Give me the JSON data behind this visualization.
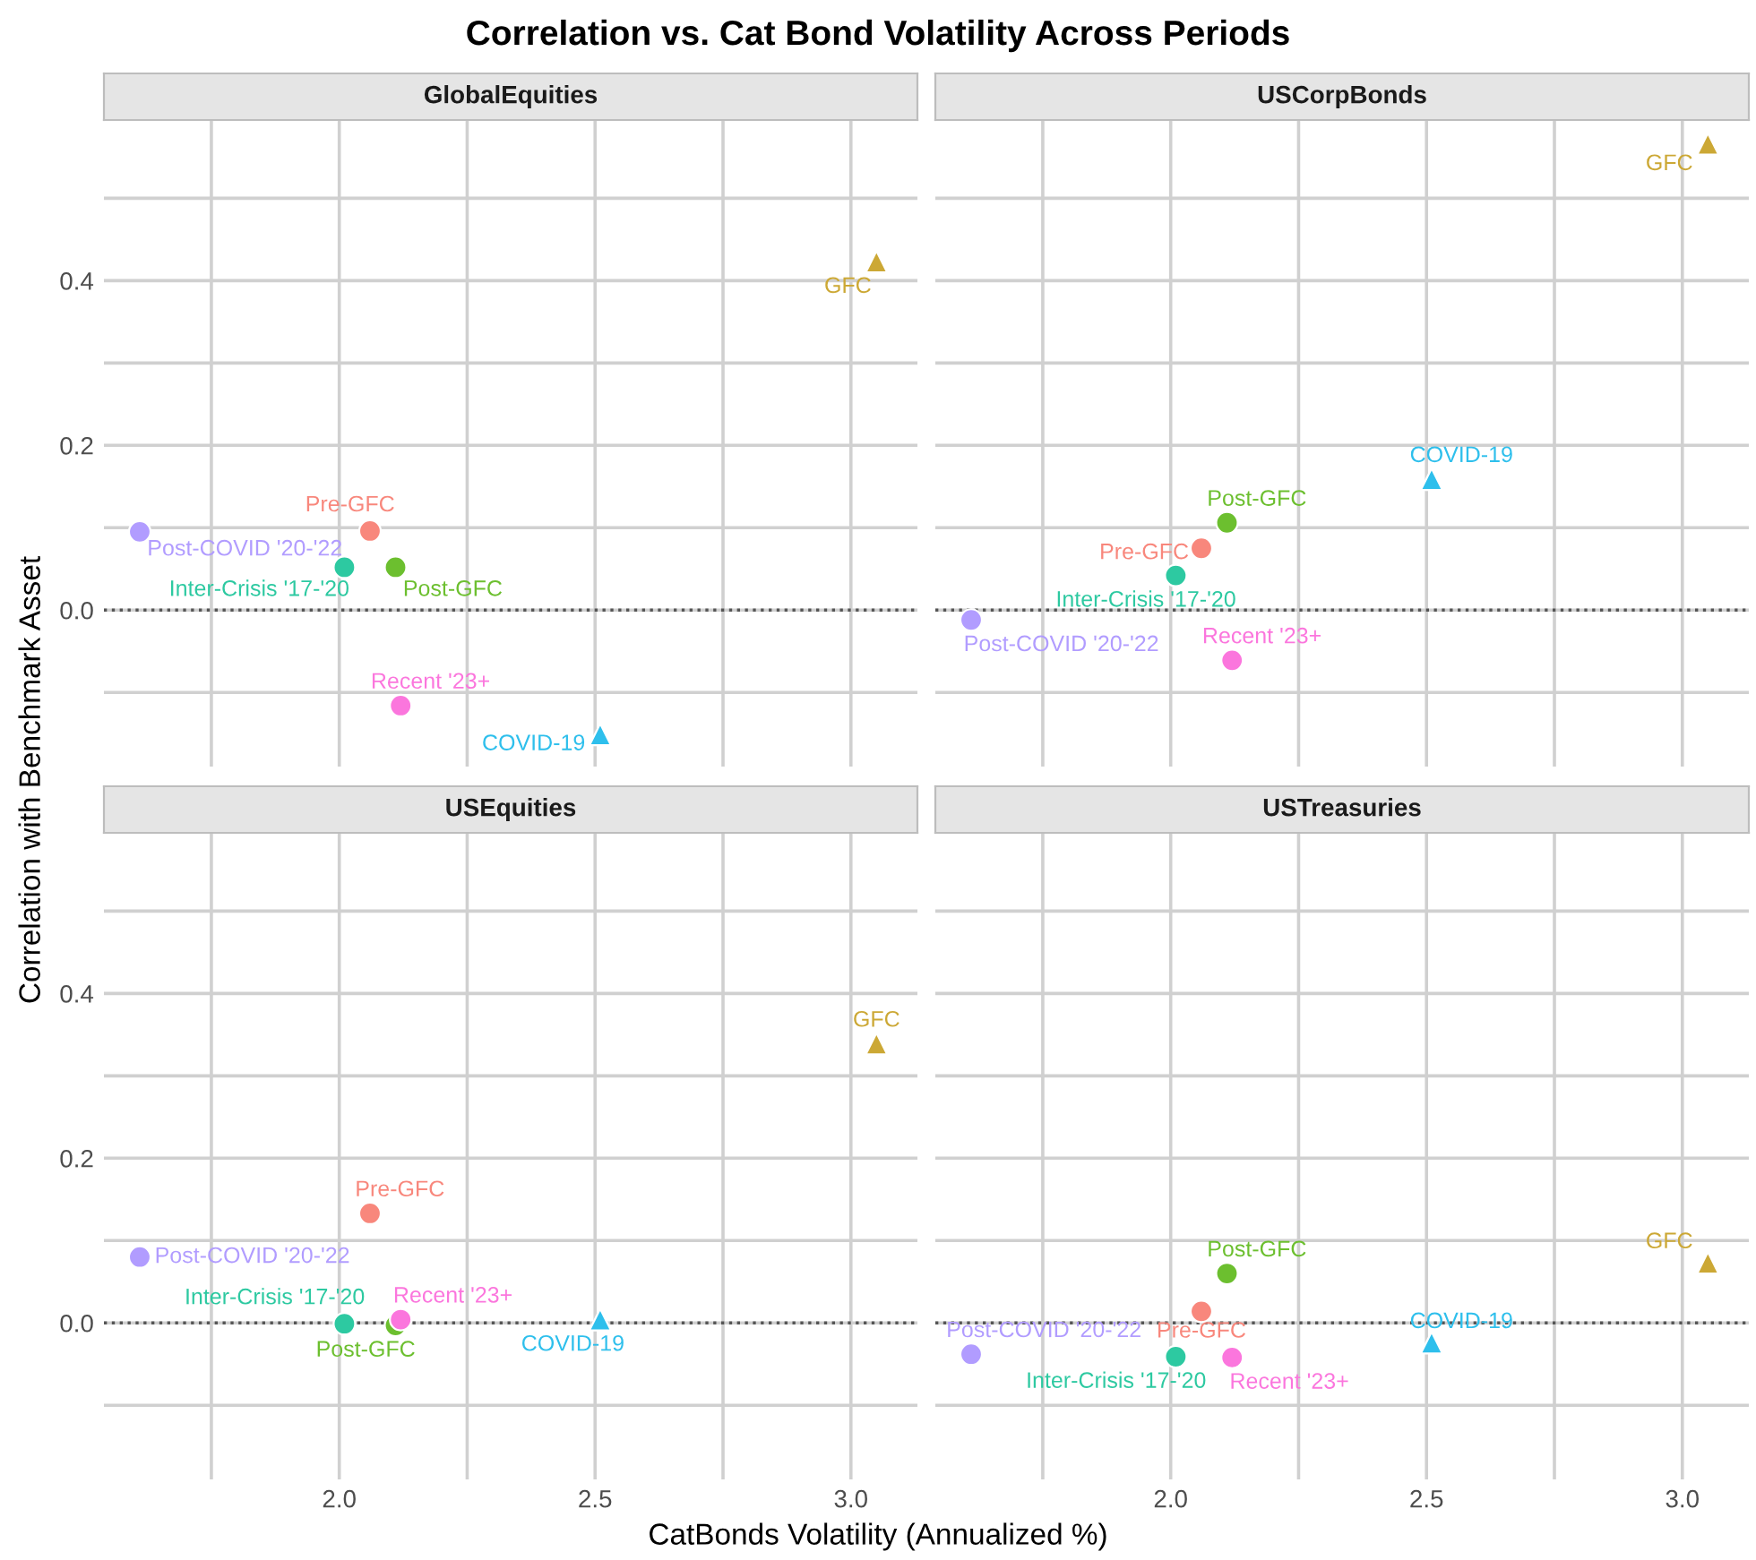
{
  "chart_data": [
    {
      "type": "scatter",
      "title": "Correlation vs. Cat Bond Volatility Across Periods",
      "subtitle": "GlobalEquities",
      "ylabel": "Correlation with Benchmark Asset",
      "xlim": [
        1.54,
        3.13
      ],
      "ylim": [
        -0.19,
        0.595
      ],
      "xticks": [
        {
          "value": 1.75,
          "label": null
        },
        {
          "value": 2,
          "label": null
        },
        {
          "value": 2.25,
          "label": null
        },
        {
          "value": 2.5,
          "label": null
        },
        {
          "value": 2.75,
          "label": null
        },
        {
          "value": 3,
          "label": null
        }
      ],
      "yticks": [
        {
          "value": -0.1,
          "label": null
        },
        {
          "value": 0,
          "label": "0.0"
        },
        {
          "value": 0.1,
          "label": null
        },
        {
          "value": 0.2,
          "label": "0.2"
        },
        {
          "value": 0.3,
          "label": null
        },
        {
          "value": 0.4,
          "label": "0.4"
        },
        {
          "value": 0.5,
          "label": null
        }
      ],
      "grid": true,
      "legend": false,
      "tick_labels": "y",
      "ref_lines": [
        {
          "axis": "y",
          "value": 0,
          "line_style": "dotted",
          "color": "#555555"
        }
      ],
      "series": [
        {
          "name": "Pre-GFC",
          "color": "#f8877c",
          "marker": "circle",
          "x": [
            2.06
          ],
          "values": [
            0.096
          ]
        },
        {
          "name": "GFC",
          "color": "#cca835",
          "marker": "triangle",
          "x": [
            3.05
          ],
          "values": [
            0.423
          ]
        },
        {
          "name": "Post-GFC",
          "color": "#6cbf2f",
          "marker": "circle",
          "x": [
            2.11
          ],
          "values": [
            0.052
          ]
        },
        {
          "name": "Inter-Crisis '17-'20",
          "color": "#2dc9a1",
          "marker": "circle",
          "x": [
            2.01
          ],
          "values": [
            0.052
          ]
        },
        {
          "name": "COVID-19",
          "color": "#2ebfec",
          "marker": "triangle",
          "x": [
            2.51
          ],
          "values": [
            -0.151
          ]
        },
        {
          "name": "Post-COVID '20-'22",
          "color": "#b19cff",
          "marker": "circle",
          "x": [
            1.61
          ],
          "values": [
            0.095
          ]
        },
        {
          "name": "Recent '23+",
          "color": "#fb76dd",
          "marker": "circle",
          "x": [
            2.12
          ],
          "values": [
            -0.116
          ]
        }
      ]
    },
    {
      "type": "scatter",
      "subtitle": "USCorpBonds",
      "xlim": [
        1.54,
        3.13
      ],
      "ylim": [
        -0.19,
        0.595
      ],
      "xticks": [
        {
          "value": 1.75,
          "label": null
        },
        {
          "value": 2,
          "label": null
        },
        {
          "value": 2.25,
          "label": null
        },
        {
          "value": 2.5,
          "label": null
        },
        {
          "value": 2.75,
          "label": null
        },
        {
          "value": 3,
          "label": null
        }
      ],
      "yticks": [
        {
          "value": -0.1,
          "label": null
        },
        {
          "value": 0,
          "label": null
        },
        {
          "value": 0.1,
          "label": null
        },
        {
          "value": 0.2,
          "label": null
        },
        {
          "value": 0.3,
          "label": null
        },
        {
          "value": 0.4,
          "label": null
        },
        {
          "value": 0.5,
          "label": null
        }
      ],
      "grid": true,
      "legend": false,
      "tick_labels": false,
      "ref_lines": [
        {
          "axis": "y",
          "value": 0,
          "line_style": "dotted",
          "color": "#555555"
        }
      ],
      "series": [
        {
          "name": "Pre-GFC",
          "color": "#f8877c",
          "marker": "circle",
          "x": [
            2.06
          ],
          "values": [
            0.075
          ]
        },
        {
          "name": "GFC",
          "color": "#cca835",
          "marker": "triangle",
          "x": [
            3.05
          ],
          "values": [
            0.566
          ]
        },
        {
          "name": "Post-GFC",
          "color": "#6cbf2f",
          "marker": "circle",
          "x": [
            2.11
          ],
          "values": [
            0.106
          ]
        },
        {
          "name": "Inter-Crisis '17-'20",
          "color": "#2dc9a1",
          "marker": "circle",
          "x": [
            2.01
          ],
          "values": [
            0.042
          ]
        },
        {
          "name": "COVID-19",
          "color": "#2ebfec",
          "marker": "triangle",
          "x": [
            2.51
          ],
          "values": [
            0.159
          ]
        },
        {
          "name": "Post-COVID '20-'22",
          "color": "#b19cff",
          "marker": "circle",
          "x": [
            1.61
          ],
          "values": [
            -0.012
          ]
        },
        {
          "name": "Recent '23+",
          "color": "#fb76dd",
          "marker": "circle",
          "x": [
            2.12
          ],
          "values": [
            -0.061
          ]
        }
      ]
    },
    {
      "type": "scatter",
      "subtitle": "USEquities",
      "xlabel": "CatBonds Volatility (Annualized %)",
      "xlim": [
        1.54,
        3.13
      ],
      "ylim": [
        -0.19,
        0.595
      ],
      "xticks": [
        {
          "value": 1.75,
          "label": null
        },
        {
          "value": 2,
          "label": "2.0"
        },
        {
          "value": 2.25,
          "label": null
        },
        2.5,
        {
          "value": 2.75,
          "label": null
        },
        {
          "value": 3,
          "label": "3.0"
        }
      ],
      "yticks": [
        {
          "value": -0.1,
          "label": null
        },
        {
          "value": 0,
          "label": "0.0"
        },
        {
          "value": 0.1,
          "label": null
        },
        {
          "value": 0.2,
          "label": "0.2"
        },
        {
          "value": 0.3,
          "label": null
        },
        {
          "value": 0.4,
          "label": "0.4"
        },
        {
          "value": 0.5,
          "label": null
        }
      ],
      "grid": true,
      "legend": false,
      "ref_lines": [
        {
          "axis": "y",
          "value": 0,
          "line_style": "dotted",
          "color": "#555555"
        }
      ],
      "series": [
        {
          "name": "Pre-GFC",
          "color": "#f8877c",
          "marker": "circle",
          "x": [
            2.06
          ],
          "values": [
            0.133
          ]
        },
        {
          "name": "GFC",
          "color": "#cca835",
          "marker": "triangle",
          "x": [
            3.05
          ],
          "values": [
            0.339
          ]
        },
        {
          "name": "Post-GFC",
          "color": "#6cbf2f",
          "marker": "circle",
          "x": [
            2.11
          ],
          "values": [
            -0.003
          ]
        },
        {
          "name": "Inter-Crisis '17-'20",
          "color": "#2dc9a1",
          "marker": "circle",
          "x": [
            2.01
          ],
          "values": [
            -0.001
          ]
        },
        {
          "name": "COVID-19",
          "color": "#2ebfec",
          "marker": "triangle",
          "x": [
            2.51
          ],
          "values": [
            0.004
          ]
        },
        {
          "name": "Post-COVID '20-'22",
          "color": "#b19cff",
          "marker": "circle",
          "x": [
            1.61
          ],
          "values": [
            0.08
          ]
        },
        {
          "name": "Recent '23+",
          "color": "#fb76dd",
          "marker": "circle",
          "x": [
            2.12
          ],
          "values": [
            0.004
          ]
        }
      ]
    },
    {
      "type": "scatter",
      "subtitle": "USTreasuries",
      "xlim": [
        1.54,
        3.13
      ],
      "ylim": [
        -0.19,
        0.595
      ],
      "xticks": [
        {
          "value": 1.75,
          "label": null
        },
        {
          "value": 2,
          "label": "2.0"
        },
        {
          "value": 2.25,
          "label": null
        },
        2.5,
        {
          "value": 2.75,
          "label": null
        },
        {
          "value": 3,
          "label": "3.0"
        }
      ],
      "yticks": [
        {
          "value": -0.1,
          "label": null
        },
        {
          "value": 0,
          "label": null
        },
        {
          "value": 0.1,
          "label": null
        },
        {
          "value": 0.2,
          "label": null
        },
        {
          "value": 0.3,
          "label": null
        },
        {
          "value": 0.4,
          "label": null
        },
        {
          "value": 0.5,
          "label": null
        }
      ],
      "grid": true,
      "legend": false,
      "tick_labels": "x",
      "ref_lines": [
        {
          "axis": "y",
          "value": 0,
          "line_style": "dotted",
          "color": "#555555"
        }
      ],
      "series": [
        {
          "name": "Pre-GFC",
          "color": "#f8877c",
          "marker": "circle",
          "x": [
            2.06
          ],
          "values": [
            0.014
          ]
        },
        {
          "name": "GFC",
          "color": "#cca835",
          "marker": "triangle",
          "x": [
            3.05
          ],
          "values": [
            0.073
          ]
        },
        {
          "name": "Post-GFC",
          "color": "#6cbf2f",
          "marker": "circle",
          "x": [
            2.11
          ],
          "values": [
            0.06
          ]
        },
        {
          "name": "Inter-Crisis '17-'20",
          "color": "#2dc9a1",
          "marker": "circle",
          "x": [
            2.01
          ],
          "values": [
            -0.041
          ]
        },
        {
          "name": "COVID-19",
          "color": "#2ebfec",
          "marker": "triangle",
          "x": [
            2.51
          ],
          "values": [
            -0.024
          ]
        },
        {
          "name": "Post-COVID '20-'22",
          "color": "#b19cff",
          "marker": "circle",
          "x": [
            1.61
          ],
          "values": [
            -0.038
          ]
        },
        {
          "name": "Recent '23+",
          "color": "#fb76dd",
          "marker": "circle",
          "x": [
            2.12
          ],
          "values": [
            -0.042
          ]
        }
      ]
    }
  ]
}
